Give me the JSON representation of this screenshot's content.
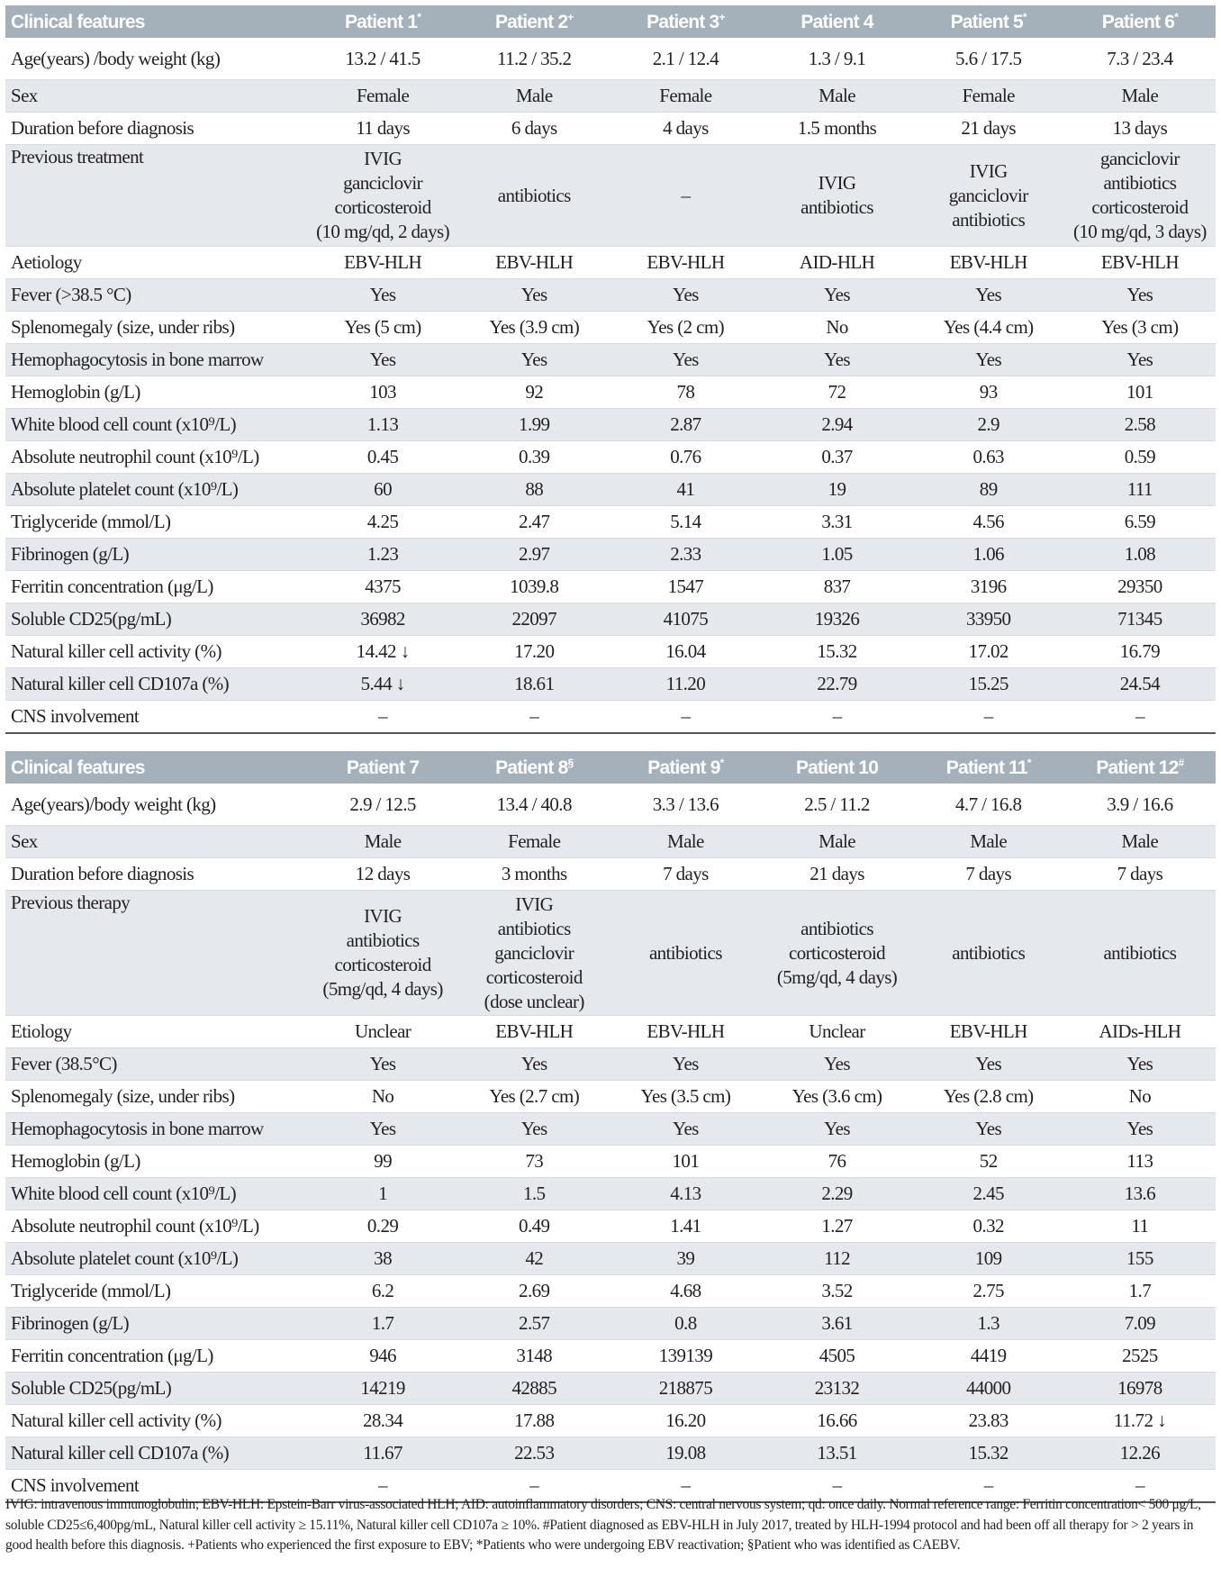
{
  "tables": [
    {
      "header": [
        "Clinical features",
        "Patient 1",
        "Patient 2",
        "Patient 3",
        "Patient 4",
        "Patient 5",
        "Patient 6"
      ],
      "header_marks": [
        "",
        "*",
        "+",
        "+",
        "",
        "*",
        "*"
      ],
      "rows": [
        {
          "label": "Age(years) /body weight (kg)",
          "values": [
            "13.2 / 41.5",
            "11.2 / 35.2",
            "2.1 / 12.4",
            "1.3 / 9.1",
            "5.6 / 17.5",
            "7.3 / 23.4"
          ]
        },
        {
          "label": "Sex",
          "values": [
            "Female",
            "Male",
            "Female",
            "Male",
            "Female",
            "Male"
          ]
        },
        {
          "label": "Duration before diagnosis",
          "values": [
            "11 days",
            "6 days",
            "4 days",
            "1.5 months",
            "21 days",
            "13 days"
          ]
        },
        {
          "label": "Previous treatment",
          "values": [
            "IVIG\nganciclovir\ncorticosteroid\n(10 mg/qd, 2 days)",
            "antibiotics",
            "–",
            "IVIG\nantibiotics",
            "IVIG\nganciclovir\nantibiotics",
            "ganciclovir\nantibiotics\ncorticosteroid\n(10 mg/qd, 3 days)"
          ]
        },
        {
          "label": "Aetiology",
          "values": [
            "EBV-HLH",
            "EBV-HLH",
            "EBV-HLH",
            "AID-HLH",
            "EBV-HLH",
            "EBV-HLH"
          ]
        },
        {
          "label": "Fever (>38.5 °C)",
          "values": [
            "Yes",
            "Yes",
            "Yes",
            "Yes",
            "Yes",
            "Yes"
          ]
        },
        {
          "label": "Splenomegaly (size, under ribs)",
          "values": [
            "Yes (5 cm)",
            "Yes (3.9 cm)",
            "Yes (2 cm)",
            "No",
            "Yes (4.4 cm)",
            "Yes (3 cm)"
          ]
        },
        {
          "label": "Hemophagocytosis in bone marrow",
          "values": [
            "Yes",
            "Yes",
            "Yes",
            "Yes",
            "Yes",
            "Yes"
          ]
        },
        {
          "label": "Hemoglobin (g/L)",
          "values": [
            "103",
            "92",
            "78",
            "72",
            "93",
            "101"
          ]
        },
        {
          "label": "White blood cell count (x10⁹/L)",
          "values": [
            "1.13",
            "1.99",
            "2.87",
            "2.94",
            "2.9",
            "2.58"
          ]
        },
        {
          "label": "Absolute neutrophil count (x10⁹/L)",
          "values": [
            "0.45",
            "0.39",
            "0.76",
            "0.37",
            "0.63",
            "0.59"
          ]
        },
        {
          "label": "Absolute platelet count (x10⁹/L)",
          "values": [
            "60",
            "88",
            "41",
            "19",
            "89",
            "111"
          ]
        },
        {
          "label": "Triglyceride (mmol/L)",
          "values": [
            "4.25",
            "2.47",
            "5.14",
            "3.31",
            "4.56",
            "6.59"
          ]
        },
        {
          "label": "Fibrinogen (g/L)",
          "values": [
            "1.23",
            "2.97",
            "2.33",
            "1.05",
            "1.06",
            "1.08"
          ]
        },
        {
          "label": "Ferritin concentration (μg/L)",
          "values": [
            "4375",
            "1039.8",
            "1547",
            "837",
            "3196",
            "29350"
          ]
        },
        {
          "label": "Soluble CD25(pg/mL)",
          "values": [
            "36982",
            "22097",
            "41075",
            "19326",
            "33950",
            "71345"
          ]
        },
        {
          "label": "Natural killer cell activity (%)",
          "values": [
            "14.42 ↓",
            "17.20",
            "16.04",
            "15.32",
            "17.02",
            "16.79"
          ]
        },
        {
          "label": "Natural killer cell CD107a (%)",
          "values": [
            "5.44 ↓",
            "18.61",
            "11.20",
            "22.79",
            "15.25",
            "24.54"
          ]
        },
        {
          "label": "CNS involvement",
          "values": [
            "–",
            "–",
            "–",
            "–",
            "–",
            "–"
          ]
        }
      ]
    },
    {
      "header": [
        "Clinical features",
        "Patient 7",
        "Patient 8",
        "Patient 9",
        "Patient 10",
        "Patient 11",
        "Patient 12"
      ],
      "header_marks": [
        "",
        "",
        "§",
        "*",
        "",
        "*",
        "#"
      ],
      "rows": [
        {
          "label": "Age(years)/body weight (kg)",
          "values": [
            "2.9 / 12.5",
            "13.4 / 40.8",
            "3.3 / 13.6",
            "2.5 / 11.2",
            "4.7 / 16.8",
            "3.9 / 16.6"
          ]
        },
        {
          "label": "Sex",
          "values": [
            "Male",
            "Female",
            "Male",
            "Male",
            "Male",
            "Male"
          ]
        },
        {
          "label": "Duration before diagnosis",
          "values": [
            "12 days",
            "3 months",
            "7 days",
            "21 days",
            "7 days",
            "7 days"
          ]
        },
        {
          "label": "Previous therapy",
          "values": [
            "IVIG\nantibiotics\ncorticosteroid\n(5mg/qd, 4 days)",
            "IVIG\nantibiotics\nganciclovir\ncorticosteroid\n(dose unclear)",
            "antibiotics",
            "antibiotics\ncorticosteroid\n(5mg/qd, 4 days)",
            "antibiotics",
            "antibiotics"
          ]
        },
        {
          "label": "Etiology",
          "values": [
            "Unclear",
            "EBV-HLH",
            "EBV-HLH",
            "Unclear",
            "EBV-HLH",
            "AIDs-HLH"
          ]
        },
        {
          "label": "Fever (38.5°C)",
          "values": [
            "Yes",
            "Yes",
            "Yes",
            "Yes",
            "Yes",
            "Yes"
          ]
        },
        {
          "label": "Splenomegaly (size, under ribs)",
          "values": [
            "No",
            "Yes (2.7 cm)",
            "Yes (3.5 cm)",
            "Yes (3.6 cm)",
            "Yes (2.8 cm)",
            "No"
          ]
        },
        {
          "label": "Hemophagocytosis in bone marrow",
          "values": [
            "Yes",
            "Yes",
            "Yes",
            "Yes",
            "Yes",
            "Yes"
          ]
        },
        {
          "label": "Hemoglobin (g/L)",
          "values": [
            "99",
            "73",
            "101",
            "76",
            "52",
            "113"
          ]
        },
        {
          "label": "White blood cell count (x10⁹/L)",
          "values": [
            "1",
            "1.5",
            "4.13",
            "2.29",
            "2.45",
            "13.6"
          ]
        },
        {
          "label": "Absolute neutrophil count (x10⁹/L)",
          "values": [
            "0.29",
            "0.49",
            "1.41",
            "1.27",
            "0.32",
            "11"
          ]
        },
        {
          "label": "Absolute platelet count (x10⁹/L)",
          "values": [
            "38",
            "42",
            "39",
            "112",
            "109",
            "155"
          ]
        },
        {
          "label": "Triglyceride (mmol/L)",
          "values": [
            "6.2",
            "2.69",
            "4.68",
            "3.52",
            "2.75",
            "1.7"
          ]
        },
        {
          "label": "Fibrinogen (g/L)",
          "values": [
            "1.7",
            "2.57",
            "0.8",
            "3.61",
            "1.3",
            "7.09"
          ]
        },
        {
          "label": "Ferritin concentration (μg/L)",
          "values": [
            "946",
            "3148",
            "139139",
            "4505",
            "4419",
            "2525"
          ]
        },
        {
          "label": "Soluble CD25(pg/mL)",
          "values": [
            "14219",
            "42885",
            "218875",
            "23132",
            "44000",
            "16978"
          ]
        },
        {
          "label": "Natural killer cell activity (%)",
          "values": [
            "28.34",
            "17.88",
            "16.20",
            "16.66",
            "23.83",
            "11.72 ↓"
          ]
        },
        {
          "label": "Natural killer cell CD107a (%)",
          "values": [
            "11.67",
            "22.53",
            "19.08",
            "13.51",
            "15.32",
            "12.26"
          ]
        },
        {
          "label": "CNS involvement",
          "values": [
            "–",
            "–",
            "–",
            "–",
            "–",
            "–"
          ]
        }
      ]
    }
  ],
  "footnote": "IVIG: intravenous immunoglobulin; EBV-HLH: Epstein-Barr virus-associated HLH; AID: autoinflammatory disorders; CNS: central nervous system; qd: once daily. Normal reference range: Ferritin concentration< 500 μg/L, soluble CD25≤6,400pg/mL, Natural killer cell activity ≥ 15.11%, Natural killer cell CD107a ≥ 10%. #Patient diagnosed as EBV-HLH in July 2017, treated by HLH-1994 protocol and had been off all therapy for > 2 years in good health before this diagnosis. +Patients who experienced the first exposure to EBV; *Patients who were undergoing EBV reactivation; §Patient who was identified as CAEBV."
}
